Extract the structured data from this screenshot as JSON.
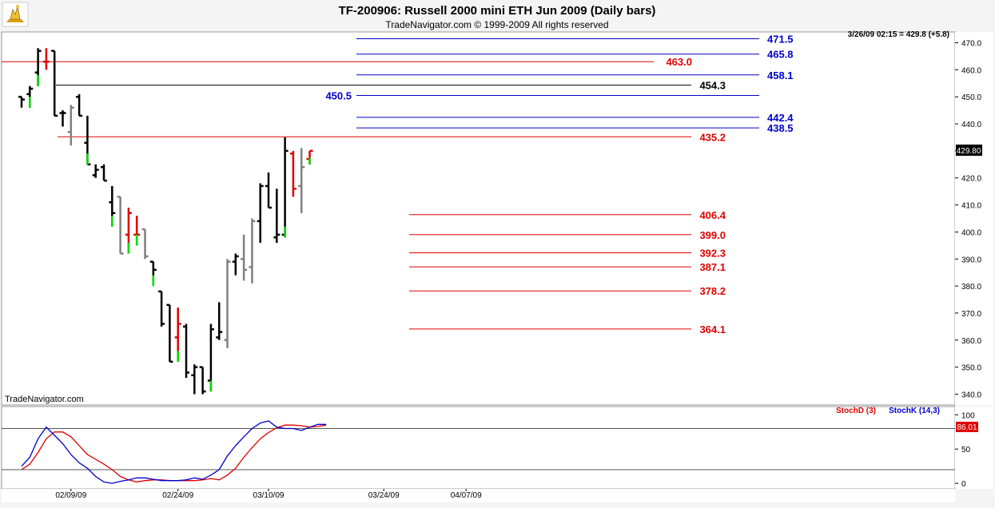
{
  "header": {
    "title": "TF-200906:  Russell 2000 mini ETH Jun 2009  (Daily bars)",
    "copyright": "TradeNavigator.com © 1999-2009 All rights reserved"
  },
  "watermark": "TradeNavigator.com",
  "last_quote": "3/26/09 02:15 = 429.8 (+5.8)",
  "current_price_label": "429.80",
  "stoch_current_label": "86.01",
  "stoch_legend": {
    "d": "StochD (3)",
    "k": "StochK (14,3)"
  },
  "colors": {
    "background": "#ffffff",
    "frame": "#f4f4f4",
    "up_bar": "#000000",
    "gray_bar": "#808080",
    "red_bar": "#e00000",
    "green_tick": "#00dd00",
    "level_blue": "#0000cc",
    "level_red": "#e00000",
    "level_black": "#000000",
    "stoch_d": "#e00000",
    "stoch_k": "#0000cc"
  },
  "chart_data": [
    {
      "type": "ohlc",
      "title": "TF-200906:  Russell 2000 mini ETH Jun 2009  (Daily bars)",
      "ylim": [
        336,
        474
      ],
      "y_ticks": [
        340,
        350,
        360,
        370,
        380,
        390,
        400,
        410,
        420,
        430,
        440,
        450,
        460,
        470
      ],
      "x_tick_labels": [
        {
          "label": "02/09/09",
          "bar": 6
        },
        {
          "label": "02/24/09",
          "bar": 19
        },
        {
          "label": "03/10/09",
          "bar": 30
        },
        {
          "label": "03/24/09",
          "bar": 44
        },
        {
          "label": "04/07/09",
          "bar": 54
        }
      ],
      "bars": [
        {
          "o": 450,
          "h": 450,
          "l": 446,
          "c": 449,
          "color": "black",
          "tick": ""
        },
        {
          "o": 451,
          "h": 454,
          "l": 446,
          "c": 453,
          "color": "black",
          "tick": "green"
        },
        {
          "o": 459,
          "h": 468,
          "l": 454,
          "c": 467,
          "color": "black",
          "tick": "green"
        },
        {
          "o": 463,
          "h": 468,
          "l": 460,
          "c": 463,
          "color": "red",
          "tick": ""
        },
        {
          "o": 467,
          "h": 467,
          "l": 443,
          "c": 443,
          "color": "black",
          "tick": ""
        },
        {
          "o": 444,
          "h": 445,
          "l": 439,
          "c": 444,
          "color": "black",
          "tick": ""
        },
        {
          "o": 437,
          "h": 447,
          "l": 432,
          "c": 446,
          "color": "gray",
          "tick": ""
        },
        {
          "o": 450,
          "h": 451,
          "l": 443,
          "c": 443,
          "color": "black",
          "tick": ""
        },
        {
          "o": 433,
          "h": 443,
          "l": 425,
          "c": 425,
          "color": "black",
          "tick": "green"
        },
        {
          "o": 421,
          "h": 425,
          "l": 420,
          "c": 423,
          "color": "black",
          "tick": ""
        },
        {
          "o": 424,
          "h": 425,
          "l": 419,
          "c": 419,
          "color": "black",
          "tick": ""
        },
        {
          "o": 411,
          "h": 417,
          "l": 402,
          "c": 407,
          "color": "black",
          "tick": "green"
        },
        {
          "o": 413,
          "h": 413,
          "l": 392,
          "c": 392,
          "color": "gray",
          "tick": ""
        },
        {
          "o": 399,
          "h": 409,
          "l": 392,
          "c": 407,
          "color": "red",
          "tick": "green"
        },
        {
          "o": 399,
          "h": 406,
          "l": 395,
          "c": 399,
          "color": "red",
          "tick": "green"
        },
        {
          "o": 401,
          "h": 401,
          "l": 390,
          "c": 391,
          "color": "gray",
          "tick": ""
        },
        {
          "o": 389,
          "h": 389,
          "l": 380,
          "c": 386,
          "color": "black",
          "tick": "green"
        },
        {
          "o": 378,
          "h": 378,
          "l": 365,
          "c": 366,
          "color": "black",
          "tick": ""
        },
        {
          "o": 373,
          "h": 373,
          "l": 352,
          "c": 352,
          "color": "black",
          "tick": ""
        },
        {
          "o": 361,
          "h": 372,
          "l": 352,
          "c": 366,
          "color": "red",
          "tick": "green"
        },
        {
          "o": 365,
          "h": 366,
          "l": 346,
          "c": 348,
          "color": "black",
          "tick": ""
        },
        {
          "o": 347,
          "h": 351,
          "l": 340,
          "c": 350,
          "color": "black",
          "tick": ""
        },
        {
          "o": 350,
          "h": 350,
          "l": 340,
          "c": 341,
          "color": "black",
          "tick": ""
        },
        {
          "o": 345,
          "h": 366,
          "l": 341,
          "c": 364,
          "color": "black",
          "tick": "green"
        },
        {
          "o": 361,
          "h": 374,
          "l": 360,
          "c": 363,
          "color": "black",
          "tick": ""
        },
        {
          "o": 360,
          "h": 390,
          "l": 357,
          "c": 389,
          "color": "gray",
          "tick": ""
        },
        {
          "o": 389,
          "h": 392,
          "l": 384,
          "c": 391,
          "color": "black",
          "tick": ""
        },
        {
          "o": 390,
          "h": 399,
          "l": 382,
          "c": 386,
          "color": "gray",
          "tick": ""
        },
        {
          "o": 387,
          "h": 405,
          "l": 381,
          "c": 404,
          "color": "gray",
          "tick": ""
        },
        {
          "o": 404,
          "h": 418,
          "l": 396,
          "c": 417,
          "color": "black",
          "tick": ""
        },
        {
          "o": 417,
          "h": 422,
          "l": 409,
          "c": 409,
          "color": "black",
          "tick": ""
        },
        {
          "o": 398,
          "h": 416,
          "l": 396,
          "c": 399,
          "color": "black",
          "tick": ""
        },
        {
          "o": 399,
          "h": 435,
          "l": 398,
          "c": 430,
          "color": "black",
          "tick": "green"
        },
        {
          "o": 429,
          "h": 430,
          "l": 413,
          "c": 416,
          "color": "red",
          "tick": ""
        },
        {
          "o": 417,
          "h": 431,
          "l": 407,
          "c": 424,
          "color": "gray",
          "tick": ""
        },
        {
          "o": 427,
          "h": 430,
          "l": 425,
          "c": 430,
          "color": "red",
          "tick": "green"
        }
      ],
      "levels": [
        {
          "value": 471.5,
          "label": "471.5",
          "color": "blue"
        },
        {
          "value": 465.8,
          "label": "465.8",
          "color": "blue"
        },
        {
          "value": 463.0,
          "label": "463.0",
          "color": "red"
        },
        {
          "value": 458.1,
          "label": "458.1",
          "color": "blue"
        },
        {
          "value": 454.3,
          "label": "454.3",
          "color": "black"
        },
        {
          "value": 450.5,
          "label": "450.5",
          "color": "blue"
        },
        {
          "value": 442.4,
          "label": "442.4",
          "color": "blue"
        },
        {
          "value": 438.5,
          "label": "438.5",
          "color": "blue"
        },
        {
          "value": 435.2,
          "label": "435.2",
          "color": "red"
        },
        {
          "value": 406.4,
          "label": "406.4",
          "color": "red"
        },
        {
          "value": 399.0,
          "label": "399.0",
          "color": "red"
        },
        {
          "value": 392.3,
          "label": "392.3",
          "color": "red"
        },
        {
          "value": 387.1,
          "label": "387.1",
          "color": "red"
        },
        {
          "value": 378.2,
          "label": "378.2",
          "color": "red"
        },
        {
          "value": 364.1,
          "label": "364.1",
          "color": "red"
        }
      ],
      "legend": "none"
    },
    {
      "type": "line",
      "ylim": [
        -8,
        112
      ],
      "y_ticks": [
        0,
        50,
        100
      ],
      "reference_lines": [
        80,
        20
      ],
      "series": [
        {
          "name": "StochD (3)",
          "color": "red",
          "values": [
            20,
            28,
            45,
            65,
            75,
            75,
            68,
            55,
            42,
            35,
            28,
            20,
            10,
            5,
            2,
            4,
            5,
            5,
            4,
            4,
            4,
            4,
            5,
            7,
            5,
            12,
            22,
            38,
            52,
            65,
            74,
            81,
            85,
            85,
            84,
            82,
            83,
            85
          ]
        },
        {
          "name": "StochK (14,3)",
          "color": "blue",
          "values": [
            25,
            38,
            65,
            82,
            70,
            58,
            42,
            30,
            22,
            10,
            2,
            0,
            3,
            5,
            8,
            8,
            6,
            4,
            4,
            4,
            5,
            8,
            6,
            12,
            20,
            40,
            55,
            68,
            80,
            88,
            91,
            82,
            80,
            80,
            77,
            82,
            86,
            86
          ]
        }
      ]
    }
  ]
}
